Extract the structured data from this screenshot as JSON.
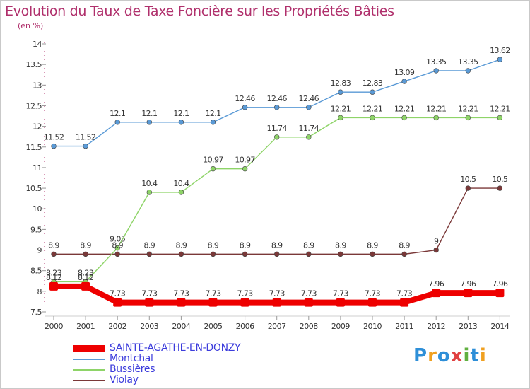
{
  "title": "Evolution du Taux de Taxe Foncière sur les Propriétés Bâties",
  "subtitle": "(en %)",
  "brand": {
    "text": "Proxiti",
    "letters": [
      "P",
      "r",
      "o",
      "x",
      "i",
      "t",
      "i"
    ],
    "colors": [
      "#2e8fd8",
      "#f0a020",
      "#2e8fd8",
      "#e04040",
      "#60b040",
      "#2e8fd8",
      "#f0a020"
    ]
  },
  "chart_data": {
    "type": "line",
    "title": "Evolution du Taux de Taxe Foncière sur les Propriétés Bâties",
    "ylabel": "(en %)",
    "x": [
      "2000",
      "2001",
      "2002",
      "2003",
      "2004",
      "2005",
      "2006",
      "2007",
      "2008",
      "2009",
      "2010",
      "2011",
      "2012",
      "2013",
      "2014"
    ],
    "ylim": [
      7.5,
      14
    ],
    "yticks": [
      "7.5",
      "8",
      "8.5",
      "9",
      "9.5",
      "10",
      "10.5",
      "11",
      "11.5",
      "12",
      "12.5",
      "13",
      "13.5",
      "14"
    ],
    "series": [
      {
        "name": "SAINTE-AGATHE-EN-DONZY",
        "color": "#ee0000",
        "values": [
          8.12,
          8.12,
          7.73,
          7.73,
          7.73,
          7.73,
          7.73,
          7.73,
          7.73,
          7.73,
          7.73,
          7.73,
          7.96,
          7.96,
          7.96
        ],
        "labels": [
          "8.12",
          "8.12",
          "7.73",
          "7.73",
          "7.73",
          "7.73",
          "7.73",
          "7.73",
          "7.73",
          "7.73",
          "7.73",
          "7.73",
          "7.96",
          "7.96",
          "7.96"
        ]
      },
      {
        "name": "Montchal",
        "color": "#5a9ad6",
        "values": [
          11.52,
          11.52,
          12.1,
          12.1,
          12.1,
          12.1,
          12.46,
          12.46,
          12.46,
          12.83,
          12.83,
          13.09,
          13.35,
          13.35,
          13.62
        ],
        "labels": [
          "11.52",
          "11.52",
          "12.1",
          "12.1",
          "12.1",
          "12.1",
          "12.46",
          "12.46",
          "12.46",
          "12.83",
          "12.83",
          "13.09",
          "13.35",
          "13.35",
          "13.62"
        ]
      },
      {
        "name": "Bussières",
        "color": "#8ed468",
        "values": [
          8.23,
          8.23,
          9.05,
          10.4,
          10.4,
          10.97,
          10.97,
          11.74,
          11.74,
          12.21,
          12.21,
          12.21,
          12.21,
          12.21,
          12.21
        ],
        "labels": [
          "8.23",
          "8.23",
          "9.05",
          "10.4",
          "10.4",
          "10.97",
          "10.97",
          "11.74",
          "11.74",
          "12.21",
          "12.21",
          "12.21",
          "12.21",
          "12.21",
          "12.21"
        ]
      },
      {
        "name": "Violay",
        "color": "#7a3838",
        "values": [
          8.9,
          8.9,
          8.9,
          8.9,
          8.9,
          8.9,
          8.9,
          8.9,
          8.9,
          8.9,
          8.9,
          8.9,
          9,
          10.5,
          10.5
        ],
        "labels": [
          "8.9",
          "8.9",
          "8.9",
          "8.9",
          "8.9",
          "8.9",
          "8.9",
          "8.9",
          "8.9",
          "8.9",
          "8.9",
          "8.9",
          "9",
          "10.5",
          "10.5"
        ]
      }
    ],
    "legend": {
      "position": "bottom-left",
      "label_color": "#3c3cdc"
    }
  }
}
